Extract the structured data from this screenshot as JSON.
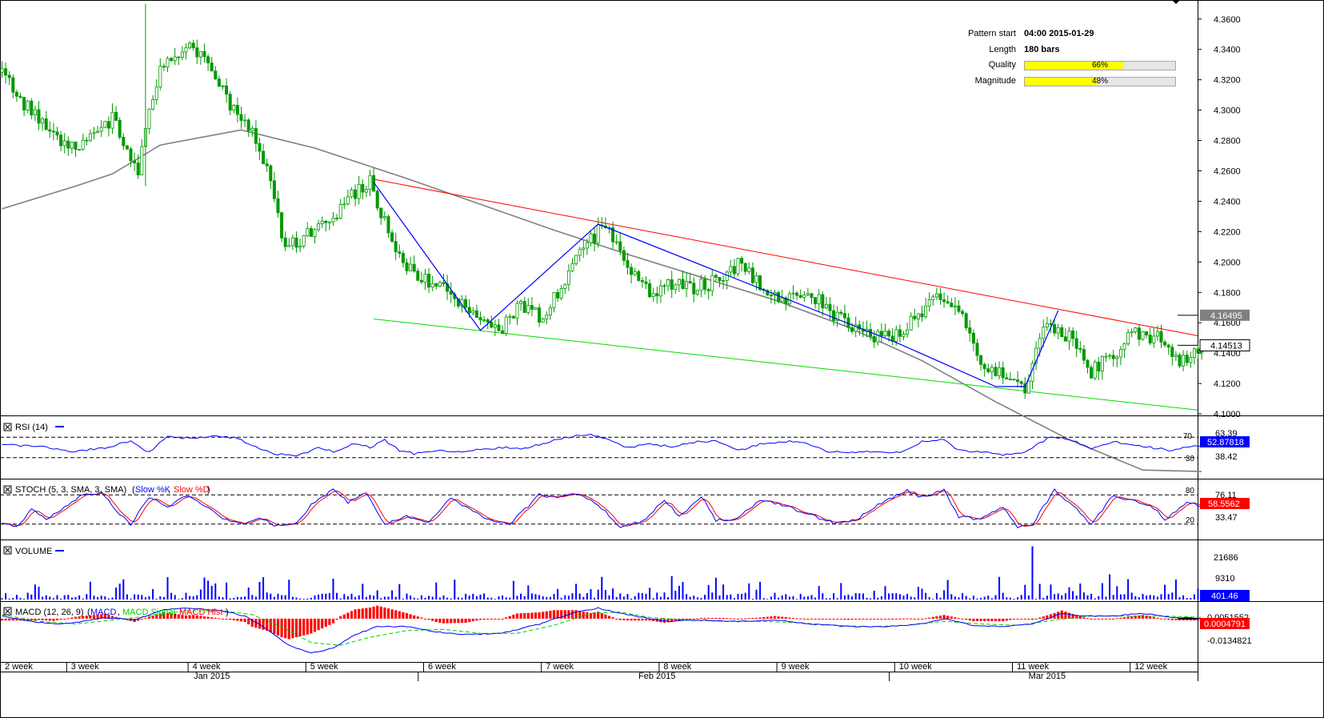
{
  "pattern_info": {
    "pattern_start_label": "Pattern start",
    "pattern_start_value": "04:00 2015-01-29",
    "length_label": "Length",
    "length_value": "180 bars",
    "quality_label": "Quality",
    "quality_value": 66,
    "quality_text": "66%",
    "magnitude_label": "Magnitude",
    "magnitude_value": 48,
    "magnitude_text": "48%"
  },
  "colors": {
    "candle": "#009900",
    "resistance_line": "#ff0000",
    "support_line": "#00dd00",
    "zigzag": "#0000ff",
    "moving_average": "#808080",
    "rsi_line": "#0000ff",
    "stoch_k": "#0000ff",
    "stoch_d": "#ff0000",
    "volume": "#0000ff",
    "macd_line": "#0000ff",
    "macd_signal": "#00cc00",
    "macd_hist": "#ff0000",
    "current_label_bg": "#0000ff",
    "stoch_label_bg": "#ff0000",
    "macd_label_bg": "#ff0000"
  },
  "chart_data": {
    "type": "candlestick",
    "price_axis": {
      "ticks": [
        "4.3600",
        "4.3400",
        "4.3200",
        "4.3000",
        "4.2800",
        "4.2600",
        "4.2400",
        "4.2200",
        "4.2000",
        "4.1800",
        "4.1600",
        "4.1400",
        "4.1200",
        "4.1000"
      ],
      "ylim": [
        4.0995,
        4.372
      ]
    },
    "moving_average_value": "4.16495",
    "current_price": "4.14513",
    "close_path": [
      [
        0,
        4.325
      ],
      [
        6,
        4.305
      ],
      [
        12,
        4.292
      ],
      [
        18,
        4.275
      ],
      [
        24,
        4.28
      ],
      [
        30,
        4.295
      ],
      [
        37,
        4.26
      ],
      [
        43,
        4.332
      ],
      [
        50,
        4.34
      ],
      [
        56,
        4.335
      ],
      [
        61,
        4.306
      ],
      [
        66,
        4.295
      ],
      [
        72,
        4.262
      ],
      [
        77,
        4.21
      ],
      [
        83,
        4.218
      ],
      [
        89,
        4.228
      ],
      [
        95,
        4.245
      ],
      [
        100,
        4.252
      ],
      [
        106,
        4.215
      ],
      [
        112,
        4.19
      ],
      [
        118,
        4.186
      ],
      [
        124,
        4.172
      ],
      [
        130,
        4.165
      ],
      [
        135,
        4.155
      ],
      [
        141,
        4.172
      ],
      [
        147,
        4.162
      ],
      [
        153,
        4.19
      ],
      [
        158,
        4.208
      ],
      [
        164,
        4.226
      ],
      [
        170,
        4.198
      ],
      [
        176,
        4.178
      ],
      [
        182,
        4.186
      ],
      [
        188,
        4.182
      ],
      [
        194,
        4.188
      ],
      [
        200,
        4.198
      ],
      [
        206,
        4.185
      ],
      [
        212,
        4.172
      ],
      [
        218,
        4.182
      ],
      [
        224,
        4.17
      ],
      [
        230,
        4.158
      ],
      [
        236,
        4.152
      ],
      [
        242,
        4.15
      ],
      [
        248,
        4.162
      ],
      [
        254,
        4.178
      ],
      [
        260,
        4.17
      ],
      [
        266,
        4.132
      ],
      [
        272,
        4.125
      ],
      [
        278,
        4.118
      ],
      [
        284,
        4.162
      ],
      [
        290,
        4.15
      ],
      [
        296,
        4.128
      ],
      [
        302,
        4.14
      ],
      [
        308,
        4.153
      ],
      [
        314,
        4.15
      ],
      [
        320,
        4.132
      ],
      [
        326,
        4.145
      ]
    ],
    "overlays": {
      "moving_average": [
        [
          0,
          4.235
        ],
        [
          20,
          4.25
        ],
        [
          30,
          4.258
        ],
        [
          43,
          4.277
        ],
        [
          65,
          4.287
        ],
        [
          85,
          4.275
        ],
        [
          110,
          4.255
        ],
        [
          130,
          4.238
        ],
        [
          150,
          4.221
        ],
        [
          170,
          4.205
        ],
        [
          190,
          4.19
        ],
        [
          210,
          4.175
        ],
        [
          230,
          4.157
        ],
        [
          250,
          4.135
        ],
        [
          270,
          4.108
        ],
        [
          290,
          4.083
        ],
        [
          310,
          4.063
        ],
        [
          326,
          4.062
        ]
      ],
      "resistance_line": {
        "from": [
          101,
          4.2545
        ],
        "to": [
          326,
          4.1515
        ]
      },
      "support_line": {
        "from": [
          101,
          4.1625
        ],
        "to": [
          326,
          4.1025
        ]
      },
      "zigzag": [
        [
          101,
          4.2525
        ],
        [
          130,
          4.155
        ],
        [
          162,
          4.225
        ],
        [
          243,
          4.147
        ],
        [
          270,
          4.118
        ],
        [
          278,
          4.118
        ],
        [
          287,
          4.168
        ]
      ]
    },
    "x_axis": {
      "week_labels": [
        "2 week",
        "3 week",
        "4 week",
        "5 week",
        "6 week",
        "7 week",
        "8 week",
        "9 week",
        "10 week",
        "11 week",
        "12 week"
      ],
      "week_positions": [
        0,
        18,
        51,
        83,
        115,
        147,
        179,
        211,
        243,
        275,
        307
      ],
      "month_labels": [
        "Jan 2015",
        "Feb 2015",
        "Mar 2015"
      ],
      "month_positions": [
        57,
        178,
        284
      ],
      "month_dividers": [
        113,
        241
      ]
    },
    "indicators": {
      "rsi": {
        "title": "RSI (14)",
        "levels": [
          70,
          30
        ],
        "level_labels": [
          "70",
          "30"
        ],
        "scale_labels": [
          "63.39",
          "38.42"
        ],
        "current": "52.87818",
        "ylim": [
          0,
          100
        ],
        "points": [
          [
            0,
            55
          ],
          [
            10,
            52
          ],
          [
            18,
            42
          ],
          [
            27,
            48
          ],
          [
            35,
            62
          ],
          [
            40,
            40
          ],
          [
            45,
            72
          ],
          [
            50,
            68
          ],
          [
            58,
            72
          ],
          [
            64,
            68
          ],
          [
            70,
            48
          ],
          [
            74,
            38
          ],
          [
            80,
            32
          ],
          [
            86,
            50
          ],
          [
            90,
            42
          ],
          [
            96,
            58
          ],
          [
            100,
            50
          ],
          [
            104,
            64
          ],
          [
            108,
            44
          ],
          [
            112,
            38
          ],
          [
            118,
            44
          ],
          [
            124,
            42
          ],
          [
            130,
            46
          ],
          [
            136,
            50
          ],
          [
            142,
            48
          ],
          [
            150,
            64
          ],
          [
            155,
            72
          ],
          [
            160,
            75
          ],
          [
            164,
            68
          ],
          [
            170,
            50
          ],
          [
            176,
            56
          ],
          [
            182,
            52
          ],
          [
            188,
            60
          ],
          [
            194,
            64
          ],
          [
            200,
            44
          ],
          [
            206,
            56
          ],
          [
            212,
            62
          ],
          [
            218,
            60
          ],
          [
            224,
            42
          ],
          [
            230,
            40
          ],
          [
            236,
            42
          ],
          [
            244,
            40
          ],
          [
            250,
            62
          ],
          [
            256,
            66
          ],
          [
            260,
            44
          ],
          [
            268,
            40
          ],
          [
            272,
            36
          ],
          [
            278,
            40
          ],
          [
            285,
            72
          ],
          [
            290,
            66
          ],
          [
            296,
            48
          ],
          [
            302,
            62
          ],
          [
            306,
            56
          ],
          [
            312,
            50
          ],
          [
            318,
            44
          ],
          [
            322,
            52
          ],
          [
            326,
            53
          ]
        ]
      },
      "stoch": {
        "title": "STOCH (5, 3, SMA, 3, SMA)",
        "series_names": [
          "Slow %K",
          "Slow %D"
        ],
        "levels": [
          80,
          20
        ],
        "level_labels": [
          "80",
          "20"
        ],
        "scale_labels": [
          "76.11",
          "33.47"
        ],
        "current": "58.5562",
        "ylim": [
          0,
          100
        ],
        "cycle_k": [
          [
            0,
            20
          ],
          [
            4,
            15
          ],
          [
            8,
            50
          ],
          [
            12,
            30
          ],
          [
            18,
            60
          ],
          [
            22,
            80
          ],
          [
            27,
            85
          ],
          [
            32,
            40
          ],
          [
            35,
            20
          ],
          [
            40,
            75
          ],
          [
            45,
            55
          ],
          [
            50,
            80
          ],
          [
            55,
            60
          ],
          [
            60,
            30
          ],
          [
            66,
            20
          ],
          [
            70,
            35
          ],
          [
            74,
            15
          ],
          [
            80,
            20
          ],
          [
            84,
            60
          ],
          [
            90,
            90
          ],
          [
            94,
            65
          ],
          [
            99,
            85
          ],
          [
            104,
            20
          ],
          [
            110,
            35
          ],
          [
            116,
            25
          ],
          [
            122,
            75
          ],
          [
            126,
            55
          ],
          [
            132,
            30
          ],
          [
            138,
            20
          ],
          [
            146,
            80
          ],
          [
            150,
            75
          ],
          [
            156,
            82
          ],
          [
            162,
            60
          ],
          [
            168,
            15
          ],
          [
            174,
            25
          ],
          [
            180,
            70
          ],
          [
            184,
            35
          ],
          [
            190,
            78
          ],
          [
            194,
            28
          ],
          [
            200,
            32
          ],
          [
            206,
            70
          ],
          [
            212,
            60
          ],
          [
            220,
            38
          ],
          [
            226,
            22
          ],
          [
            232,
            28
          ],
          [
            238,
            60
          ],
          [
            246,
            88
          ],
          [
            250,
            75
          ],
          [
            256,
            90
          ],
          [
            260,
            35
          ],
          [
            266,
            30
          ],
          [
            272,
            56
          ],
          [
            276,
            15
          ],
          [
            280,
            20
          ],
          [
            286,
            90
          ],
          [
            292,
            50
          ],
          [
            296,
            20
          ],
          [
            302,
            80
          ],
          [
            306,
            70
          ],
          [
            312,
            60
          ],
          [
            316,
            30
          ],
          [
            322,
            65
          ],
          [
            326,
            58
          ]
        ]
      },
      "volume": {
        "title": "VOLUME",
        "scale_labels": [
          "21686",
          "9310"
        ],
        "current": "401.46",
        "max_value": 30000
      },
      "macd": {
        "title": "MACD (12, 26, 9)",
        "series_names": [
          "MACD",
          "MACD Signal",
          "MACD Hist"
        ],
        "scale_labels": [
          "0.0051552",
          "-0.0134821"
        ],
        "current": "0.0004791",
        "ylim": [
          -0.032,
          0.012
        ],
        "macd_line": [
          [
            0,
            0.002
          ],
          [
            8,
            -0.002
          ],
          [
            14,
            -0.004
          ],
          [
            20,
            -0.003
          ],
          [
            28,
            0.001
          ],
          [
            36,
            -0.001
          ],
          [
            44,
            0.007
          ],
          [
            52,
            0.008
          ],
          [
            60,
            0.006
          ],
          [
            66,
            0.002
          ],
          [
            72,
            -0.008
          ],
          [
            78,
            -0.02
          ],
          [
            84,
            -0.026
          ],
          [
            90,
            -0.022
          ],
          [
            96,
            -0.012
          ],
          [
            102,
            -0.006
          ],
          [
            110,
            -0.006
          ],
          [
            118,
            -0.01
          ],
          [
            126,
            -0.012
          ],
          [
            136,
            -0.011
          ],
          [
            146,
            -0.004
          ],
          [
            156,
            0.005
          ],
          [
            162,
            0.008
          ],
          [
            170,
            0.003
          ],
          [
            180,
            -0.002
          ],
          [
            190,
            -0.001
          ],
          [
            200,
            -0.002
          ],
          [
            210,
            -0.001
          ],
          [
            220,
            -0.004
          ],
          [
            230,
            -0.006
          ],
          [
            240,
            -0.006
          ],
          [
            250,
            -0.004
          ],
          [
            256,
            0.0
          ],
          [
            264,
            -0.005
          ],
          [
            272,
            -0.006
          ],
          [
            280,
            -0.004
          ],
          [
            288,
            0.004
          ],
          [
            294,
            0.002
          ],
          [
            302,
            0.002
          ],
          [
            310,
            0.004
          ],
          [
            318,
            0.001
          ],
          [
            326,
            0.0
          ]
        ],
        "signal_line": [
          [
            0,
            0.003
          ],
          [
            10,
            -0.002
          ],
          [
            20,
            -0.004
          ],
          [
            30,
            -0.001
          ],
          [
            40,
            0.002
          ],
          [
            50,
            0.006
          ],
          [
            60,
            0.006
          ],
          [
            68,
            0.003
          ],
          [
            76,
            -0.006
          ],
          [
            84,
            -0.018
          ],
          [
            92,
            -0.02
          ],
          [
            100,
            -0.014
          ],
          [
            110,
            -0.009
          ],
          [
            120,
            -0.008
          ],
          [
            130,
            -0.011
          ],
          [
            140,
            -0.011
          ],
          [
            150,
            -0.005
          ],
          [
            160,
            0.004
          ],
          [
            168,
            0.005
          ],
          [
            176,
            0.001
          ],
          [
            186,
            -0.001
          ],
          [
            196,
            -0.002
          ],
          [
            206,
            -0.002
          ],
          [
            216,
            -0.003
          ],
          [
            226,
            -0.005
          ],
          [
            236,
            -0.006
          ],
          [
            246,
            -0.005
          ],
          [
            256,
            -0.002
          ],
          [
            266,
            -0.004
          ],
          [
            276,
            -0.005
          ],
          [
            286,
            -0.001
          ],
          [
            296,
            0.002
          ],
          [
            306,
            0.002
          ],
          [
            316,
            0.002
          ],
          [
            326,
            0.001
          ]
        ]
      }
    }
  }
}
